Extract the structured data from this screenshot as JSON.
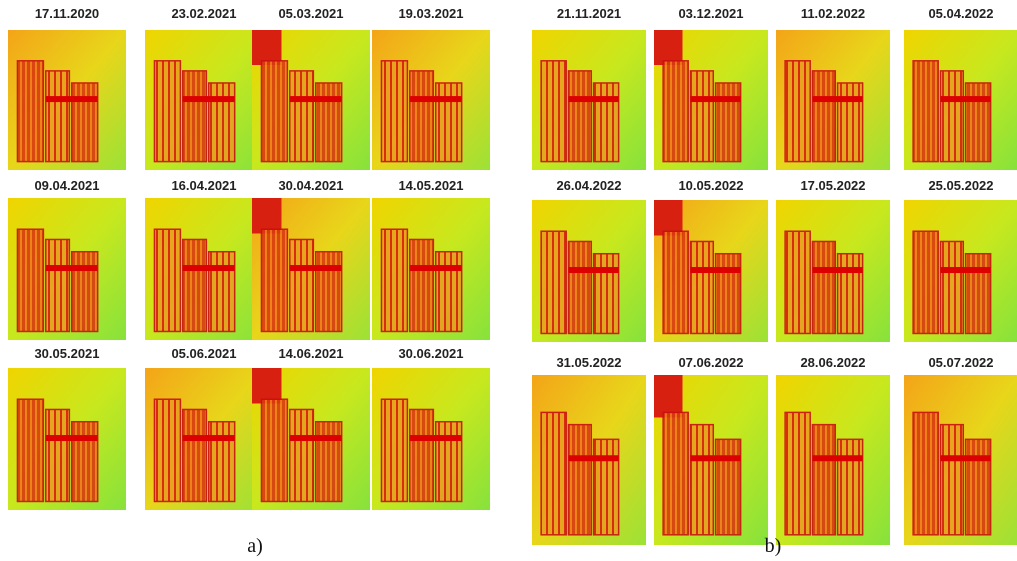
{
  "panels": [
    {
      "label": "a)",
      "images": [
        {
          "date": "17.11.2020"
        },
        {
          "date": "23.02.2021"
        },
        {
          "date": "05.03.2021"
        },
        {
          "date": "19.03.2021"
        },
        {
          "date": "09.04.2021"
        },
        {
          "date": "16.04.2021"
        },
        {
          "date": "30.04.2021"
        },
        {
          "date": "14.05.2021"
        },
        {
          "date": "30.05.2021"
        },
        {
          "date": "05.06.2021"
        },
        {
          "date": "14.06.2021"
        },
        {
          "date": "30.06.2021"
        }
      ]
    },
    {
      "label": "b)",
      "images": [
        {
          "date": "21.11.2021"
        },
        {
          "date": "03.12.2021"
        },
        {
          "date": "11.02.2022"
        },
        {
          "date": "05.04.2022"
        },
        {
          "date": "26.04.2022"
        },
        {
          "date": "10.05.2022"
        },
        {
          "date": "17.05.2022"
        },
        {
          "date": "25.05.2022"
        },
        {
          "date": "31.05.2022"
        },
        {
          "date": "07.06.2022"
        },
        {
          "date": "28.06.2022"
        },
        {
          "date": "05.07.2022"
        }
      ]
    }
  ]
}
